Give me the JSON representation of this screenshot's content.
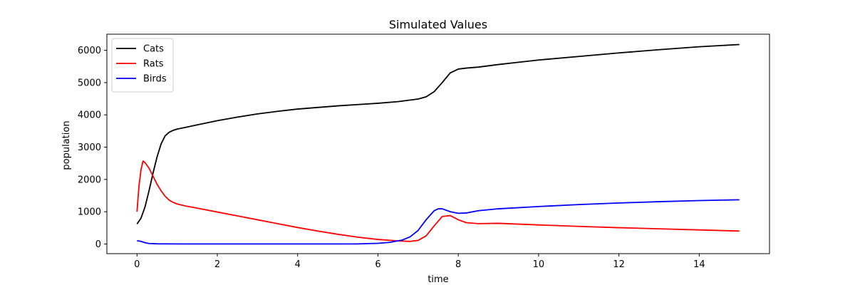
{
  "chart_data": {
    "type": "line",
    "title": "Simulated Values",
    "xlabel": "time",
    "ylabel": "population",
    "xlim": [
      -0.75,
      15.75
    ],
    "ylim": [
      -300,
      6500
    ],
    "xticks": [
      0,
      2,
      4,
      6,
      8,
      10,
      12,
      14
    ],
    "yticks": [
      0,
      1000,
      2000,
      3000,
      4000,
      5000,
      6000
    ],
    "grid": false,
    "legend_position": "top-left",
    "series": [
      {
        "name": "Cats",
        "color": "#000000",
        "points": [
          [
            0,
            620
          ],
          [
            0.1,
            800
          ],
          [
            0.2,
            1150
          ],
          [
            0.3,
            1650
          ],
          [
            0.4,
            2200
          ],
          [
            0.5,
            2700
          ],
          [
            0.6,
            3100
          ],
          [
            0.7,
            3350
          ],
          [
            0.8,
            3460
          ],
          [
            0.9,
            3520
          ],
          [
            1.0,
            3560
          ],
          [
            1.2,
            3610
          ],
          [
            1.5,
            3690
          ],
          [
            2.0,
            3820
          ],
          [
            2.5,
            3930
          ],
          [
            3.0,
            4030
          ],
          [
            3.5,
            4110
          ],
          [
            4.0,
            4180
          ],
          [
            4.5,
            4230
          ],
          [
            5.0,
            4280
          ],
          [
            5.5,
            4320
          ],
          [
            6.0,
            4360
          ],
          [
            6.5,
            4410
          ],
          [
            7.0,
            4490
          ],
          [
            7.2,
            4560
          ],
          [
            7.4,
            4720
          ],
          [
            7.6,
            5000
          ],
          [
            7.8,
            5300
          ],
          [
            8.0,
            5420
          ],
          [
            8.2,
            5450
          ],
          [
            8.5,
            5480
          ],
          [
            9.0,
            5560
          ],
          [
            9.5,
            5630
          ],
          [
            10.0,
            5700
          ],
          [
            11.0,
            5810
          ],
          [
            12.0,
            5920
          ],
          [
            13.0,
            6020
          ],
          [
            14.0,
            6110
          ],
          [
            15.0,
            6180
          ]
        ]
      },
      {
        "name": "Rats",
        "color": "#ff0000",
        "points": [
          [
            0,
            1000
          ],
          [
            0.05,
            1800
          ],
          [
            0.1,
            2300
          ],
          [
            0.15,
            2570
          ],
          [
            0.2,
            2520
          ],
          [
            0.3,
            2350
          ],
          [
            0.4,
            2100
          ],
          [
            0.5,
            1850
          ],
          [
            0.6,
            1650
          ],
          [
            0.7,
            1480
          ],
          [
            0.8,
            1360
          ],
          [
            0.9,
            1290
          ],
          [
            1.0,
            1240
          ],
          [
            1.2,
            1180
          ],
          [
            1.5,
            1110
          ],
          [
            2.0,
            990
          ],
          [
            2.5,
            870
          ],
          [
            3.0,
            750
          ],
          [
            3.5,
            630
          ],
          [
            4.0,
            510
          ],
          [
            4.5,
            400
          ],
          [
            5.0,
            300
          ],
          [
            5.5,
            210
          ],
          [
            6.0,
            140
          ],
          [
            6.5,
            95
          ],
          [
            6.8,
            80
          ],
          [
            7.0,
            110
          ],
          [
            7.2,
            250
          ],
          [
            7.4,
            560
          ],
          [
            7.6,
            850
          ],
          [
            7.8,
            880
          ],
          [
            8.0,
            750
          ],
          [
            8.2,
            660
          ],
          [
            8.5,
            630
          ],
          [
            9.0,
            640
          ],
          [
            10.0,
            590
          ],
          [
            11.0,
            545
          ],
          [
            12.0,
            505
          ],
          [
            13.0,
            470
          ],
          [
            14.0,
            435
          ],
          [
            15.0,
            400
          ]
        ]
      },
      {
        "name": "Birds",
        "color": "#0000ff",
        "points": [
          [
            0,
            100
          ],
          [
            0.1,
            80
          ],
          [
            0.2,
            40
          ],
          [
            0.3,
            15
          ],
          [
            0.5,
            5
          ],
          [
            1.0,
            0
          ],
          [
            2.0,
            0
          ],
          [
            3.0,
            0
          ],
          [
            4.0,
            0
          ],
          [
            5.0,
            0
          ],
          [
            5.5,
            2
          ],
          [
            6.0,
            20
          ],
          [
            6.3,
            50
          ],
          [
            6.6,
            120
          ],
          [
            6.8,
            220
          ],
          [
            7.0,
            420
          ],
          [
            7.2,
            750
          ],
          [
            7.4,
            1030
          ],
          [
            7.5,
            1090
          ],
          [
            7.6,
            1090
          ],
          [
            7.8,
            1000
          ],
          [
            8.0,
            950
          ],
          [
            8.2,
            960
          ],
          [
            8.5,
            1030
          ],
          [
            9.0,
            1090
          ],
          [
            10.0,
            1160
          ],
          [
            11.0,
            1220
          ],
          [
            12.0,
            1270
          ],
          [
            13.0,
            1310
          ],
          [
            14.0,
            1345
          ],
          [
            15.0,
            1370
          ]
        ]
      }
    ]
  }
}
